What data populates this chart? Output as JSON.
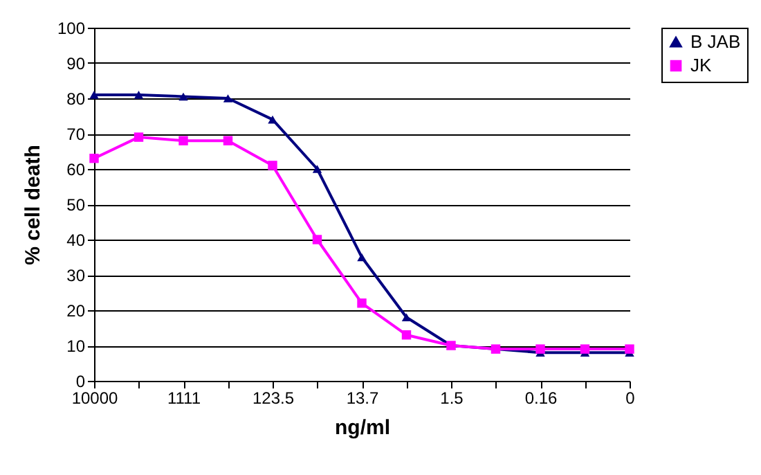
{
  "chart_data": {
    "type": "line",
    "xlabel": "ng/ml",
    "ylabel": "% cell death",
    "categories": [
      "10000",
      null,
      "1111",
      null,
      "123.5",
      null,
      "13.7",
      null,
      "1.5",
      null,
      "0.16",
      null,
      "0"
    ],
    "series": [
      {
        "name": "B JAB",
        "color": "#000080",
        "marker": "triangle",
        "values": [
          81,
          81,
          80.5,
          80,
          74,
          60,
          35,
          18,
          10,
          9,
          8,
          8,
          8
        ]
      },
      {
        "name": "JK",
        "color": "#ff00ff",
        "marker": "square",
        "values": [
          63,
          69,
          68,
          68,
          61,
          40,
          22,
          13,
          10,
          9,
          9,
          9,
          9
        ]
      }
    ],
    "ylim": [
      0,
      100
    ],
    "yticks": [
      0,
      10,
      20,
      30,
      40,
      50,
      60,
      70,
      80,
      90,
      100
    ],
    "grid": "y",
    "legend": "right",
    "line_style": "solid"
  }
}
